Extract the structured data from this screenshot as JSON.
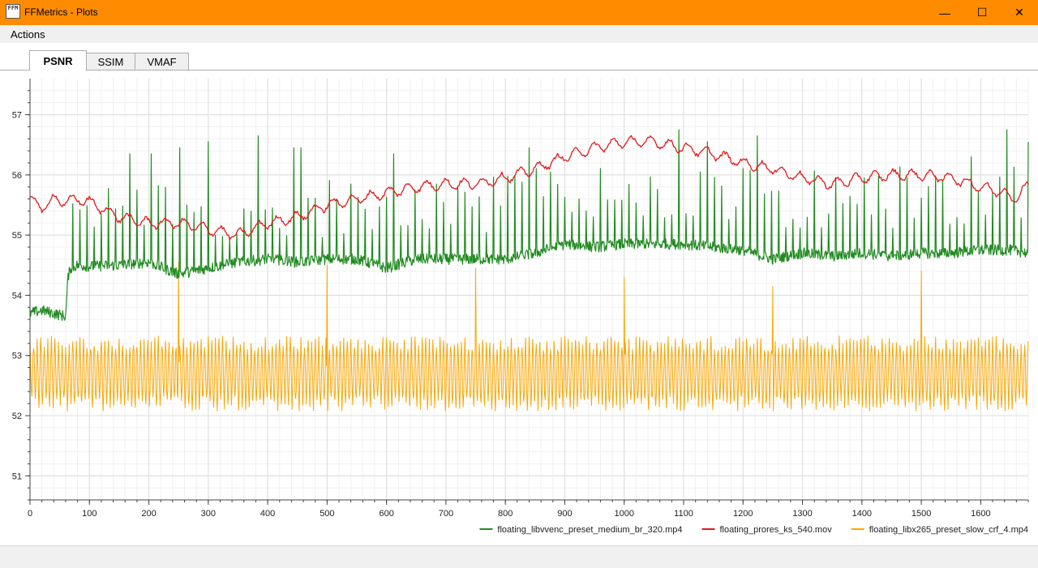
{
  "window": {
    "title": "FFMetrics - Plots",
    "icon_label": "FFM",
    "controls": {
      "minimize": "—",
      "maximize": "☐",
      "close": "✕"
    },
    "accent_color": "#ff8c00"
  },
  "menu": {
    "actions_label": "Actions"
  },
  "tabs": [
    {
      "label": "PSNR",
      "active": true
    },
    {
      "label": "SSIM",
      "active": false
    },
    {
      "label": "VMAF",
      "active": false
    }
  ],
  "chart_data": {
    "type": "line",
    "title": "",
    "xlabel": "",
    "ylabel": "",
    "xlim": [
      0,
      1680
    ],
    "ylim": [
      50.6,
      57.6
    ],
    "x_ticks": [
      0,
      100,
      200,
      300,
      400,
      500,
      600,
      700,
      800,
      900,
      1000,
      1100,
      1200,
      1300,
      1400,
      1500,
      1600
    ],
    "y_ticks": [
      51,
      52,
      53,
      54,
      55,
      56,
      57
    ],
    "grid": true,
    "legend_position": "bottom-right",
    "series": [
      {
        "name": "floating_libvvenc_preset_medium_br_320.mp4",
        "color": "#228b22",
        "style": "baseline with periodic sharp upward spikes",
        "x": [
          0,
          20,
          40,
          60,
          64,
          68,
          80,
          100,
          150,
          200,
          250,
          300,
          350,
          400,
          450,
          500,
          550,
          600,
          650,
          700,
          750,
          800,
          850,
          900,
          950,
          1000,
          1050,
          1100,
          1150,
          1200,
          1250,
          1300,
          1350,
          1400,
          1450,
          1500,
          1550,
          1600,
          1650,
          1680
        ],
        "baseline": [
          53.7,
          53.75,
          53.7,
          53.65,
          54.3,
          54.45,
          54.5,
          54.48,
          54.5,
          54.55,
          54.35,
          54.45,
          54.55,
          54.6,
          54.55,
          54.6,
          54.6,
          54.45,
          54.6,
          54.6,
          54.6,
          54.6,
          54.7,
          54.85,
          54.8,
          54.85,
          54.85,
          54.85,
          54.8,
          54.75,
          54.6,
          54.7,
          54.65,
          54.7,
          54.65,
          54.7,
          54.7,
          54.75,
          54.75,
          54.7
        ],
        "spike_period": 12,
        "spike_peaks": [
          [
            170,
            56.35
          ],
          [
            200,
            56.35
          ],
          [
            255,
            56.45
          ],
          [
            300,
            56.55
          ],
          [
            385,
            56.65
          ],
          [
            450,
            56.45
          ],
          [
            615,
            56.35
          ],
          [
            840,
            56.45
          ],
          [
            1090,
            56.75
          ],
          [
            1145,
            56.55
          ],
          [
            1225,
            56.65
          ],
          [
            1580,
            56.3
          ],
          [
            1640,
            56.75
          ],
          [
            1675,
            56.55
          ]
        ]
      },
      {
        "name": "floating_prores_ks_540.mov",
        "color": "#e31a1c",
        "style": "smooth wavy line",
        "x": [
          0,
          20,
          40,
          60,
          80,
          100,
          120,
          150,
          200,
          250,
          300,
          350,
          400,
          450,
          500,
          550,
          600,
          650,
          700,
          750,
          800,
          850,
          900,
          950,
          1000,
          1050,
          1100,
          1150,
          1200,
          1250,
          1300,
          1350,
          1400,
          1450,
          1500,
          1550,
          1600,
          1620,
          1640,
          1660,
          1680
        ],
        "values": [
          55.6,
          55.45,
          55.6,
          55.55,
          55.6,
          55.55,
          55.45,
          55.3,
          55.2,
          55.2,
          55.1,
          55.0,
          55.2,
          55.3,
          55.5,
          55.6,
          55.7,
          55.8,
          55.85,
          55.85,
          55.95,
          56.1,
          56.3,
          56.45,
          56.55,
          56.55,
          56.45,
          56.35,
          56.2,
          56.1,
          55.95,
          55.85,
          55.95,
          56.0,
          56.0,
          55.95,
          55.8,
          55.75,
          55.7,
          55.6,
          55.85
        ]
      },
      {
        "name": "floating_libx265_preset_slow_crf_4.mp4",
        "color": "#ffa500",
        "style": "dense oscillation between ~52.2 and ~53.2 with rare spikes every 250 frames",
        "x_range": [
          0,
          1680
        ],
        "low": 52.2,
        "high": 53.2,
        "oscillation_period": 6,
        "spikes": [
          [
            250,
            54.55
          ],
          [
            500,
            54.5
          ],
          [
            750,
            54.45
          ],
          [
            1000,
            54.3
          ],
          [
            1250,
            54.15
          ],
          [
            1500,
            54.4
          ]
        ]
      }
    ]
  }
}
